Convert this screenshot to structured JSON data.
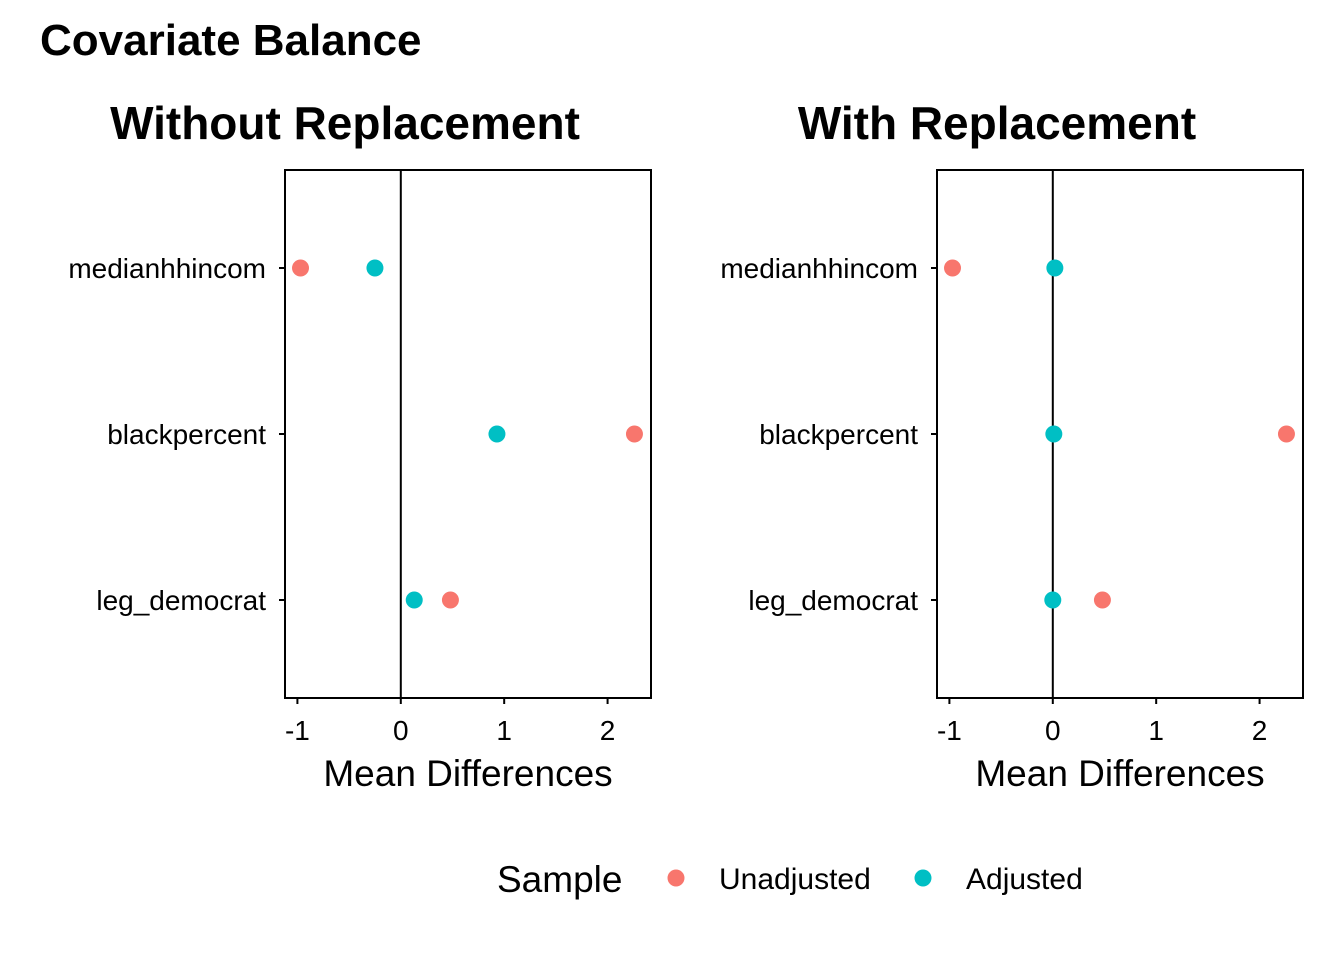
{
  "figure": {
    "title": "Covariate Balance"
  },
  "colors": {
    "unadjusted": "#F8766D",
    "adjusted": "#00BFC4",
    "axis": "#000000"
  },
  "legend": {
    "title": "Sample",
    "position": "bottom",
    "entries": [
      {
        "label": "Unadjusted",
        "series": "unadjusted"
      },
      {
        "label": "Adjusted",
        "series": "adjusted"
      }
    ]
  },
  "chart_data": [
    {
      "type": "scatter",
      "title": "Without Replacement",
      "xlabel": "Mean Differences",
      "ylabel": "",
      "xlim": [
        -1.12,
        2.42
      ],
      "xticks": [
        -1,
        0,
        1,
        2
      ],
      "xtick_labels": [
        "-1",
        "0",
        "1",
        "2"
      ],
      "reference_line_x": 0,
      "grid": false,
      "categories": [
        "medianhhincom",
        "blackpercent",
        "leg_democrat"
      ],
      "series": [
        {
          "name": "Unadjusted",
          "color_key": "unadjusted",
          "values": [
            -0.97,
            2.26,
            0.48
          ]
        },
        {
          "name": "Adjusted",
          "color_key": "adjusted",
          "values": [
            -0.25,
            0.93,
            0.13
          ]
        }
      ]
    },
    {
      "type": "scatter",
      "title": "With Replacement",
      "xlabel": "Mean Differences",
      "ylabel": "",
      "xlim": [
        -1.12,
        2.42
      ],
      "xticks": [
        -1,
        0,
        1,
        2
      ],
      "xtick_labels": [
        "-1",
        "0",
        "1",
        "2"
      ],
      "reference_line_x": 0,
      "grid": false,
      "categories": [
        "medianhhincom",
        "blackpercent",
        "leg_democrat"
      ],
      "series": [
        {
          "name": "Unadjusted",
          "color_key": "unadjusted",
          "values": [
            -0.97,
            2.26,
            0.48
          ]
        },
        {
          "name": "Adjusted",
          "color_key": "adjusted",
          "values": [
            0.02,
            0.01,
            0.0
          ]
        }
      ]
    }
  ]
}
